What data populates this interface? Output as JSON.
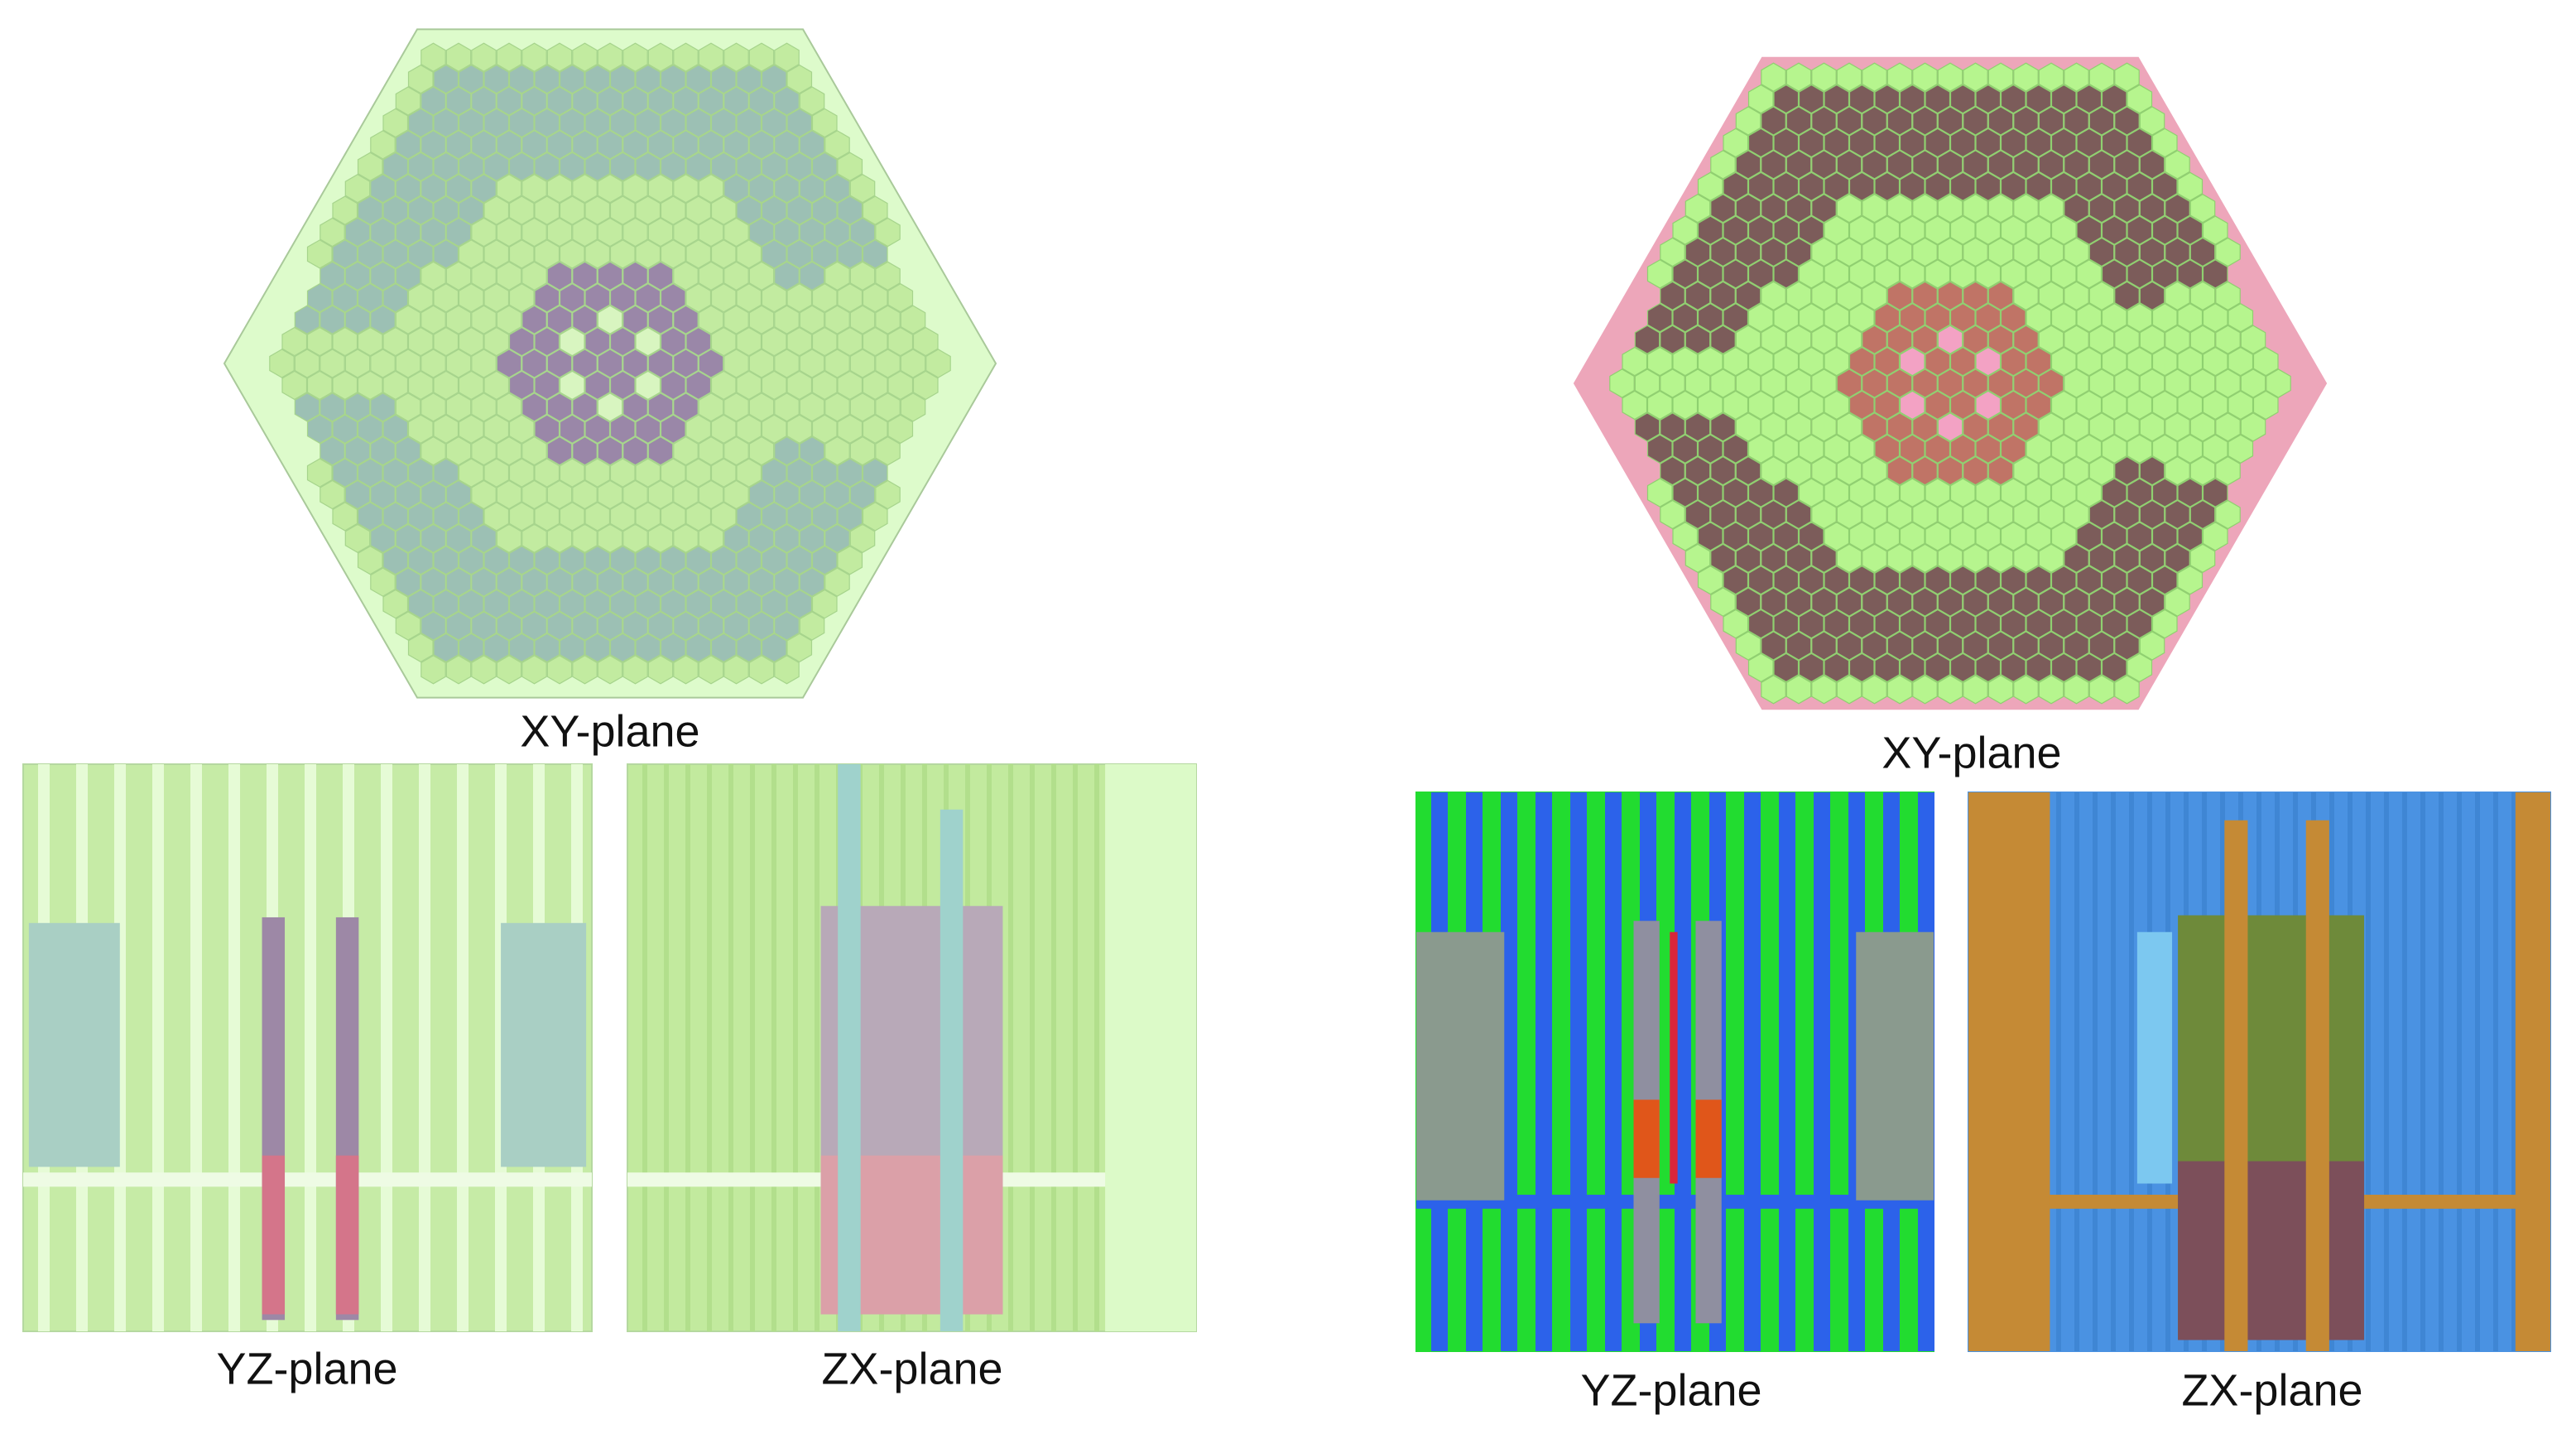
{
  "figures": [
    {
      "xy_label": "XY-plane",
      "yz_label": "YZ-plane",
      "zx_label": "ZX-plane"
    },
    {
      "xy_label": "XY-plane",
      "yz_label": "YZ-plane",
      "zx_label": "ZX-plane"
    }
  ]
}
